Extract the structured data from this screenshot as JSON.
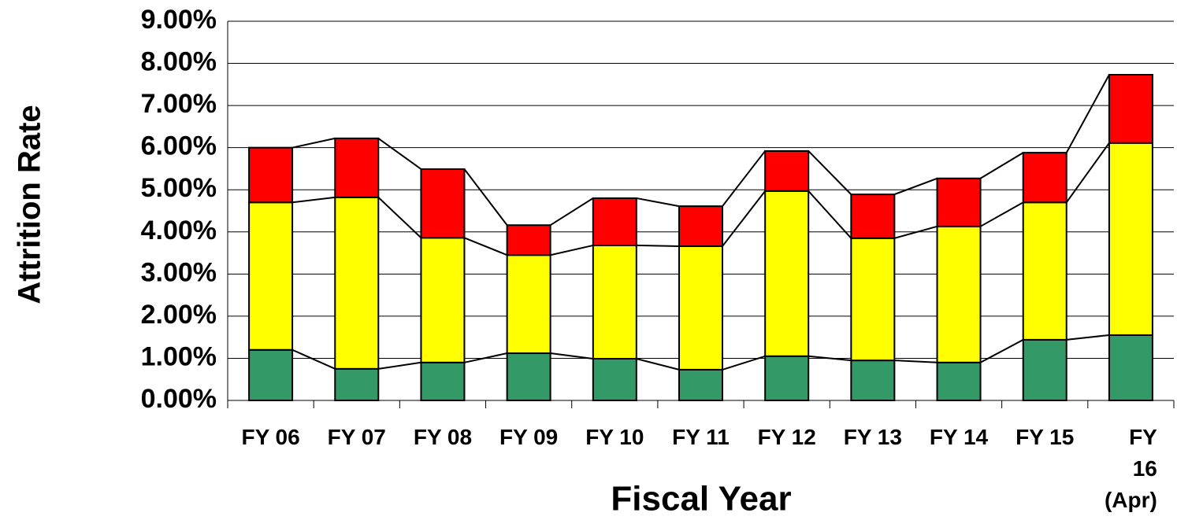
{
  "chart_data": {
    "type": "stacked_bar",
    "x_label": "Fiscal Year",
    "y_label": "Attrition Rate",
    "categories": [
      "FY 06",
      "FY 07",
      "FY 08",
      "FY 09",
      "FY 10",
      "FY 11",
      "FY 12",
      "FY 13",
      "FY 14",
      "FY 15",
      "FY 16\n(Apr)"
    ],
    "series": [
      {
        "color": "#339966",
        "values": [
          1.2,
          0.75,
          0.9,
          1.12,
          0.99,
          0.73,
          1.05,
          0.95,
          0.9,
          1.44,
          1.55
        ]
      },
      {
        "color": "#ffff00",
        "values": [
          3.5,
          4.07,
          2.96,
          2.33,
          2.69,
          2.93,
          3.92,
          2.9,
          3.23,
          3.26,
          4.56
        ]
      },
      {
        "color": "#ff0000",
        "values": [
          1.3,
          1.4,
          1.63,
          0.71,
          1.12,
          0.95,
          0.95,
          1.04,
          1.14,
          1.18,
          1.62
        ]
      }
    ],
    "ylim": [
      0,
      9
    ],
    "yticks": [
      {
        "value": 0,
        "label": "0.00%"
      },
      {
        "value": 1,
        "label": "1.00%"
      },
      {
        "value": 2,
        "label": "2.00%"
      },
      {
        "value": 3,
        "label": "3.00%"
      },
      {
        "value": 4,
        "label": "4.00%"
      },
      {
        "value": 5,
        "label": "5.00%"
      },
      {
        "value": 6,
        "label": "6.00%"
      },
      {
        "value": 7,
        "label": "7.00%"
      },
      {
        "value": 8,
        "label": "8.00%"
      },
      {
        "value": 9,
        "label": "9.00%"
      }
    ],
    "grid": true
  }
}
